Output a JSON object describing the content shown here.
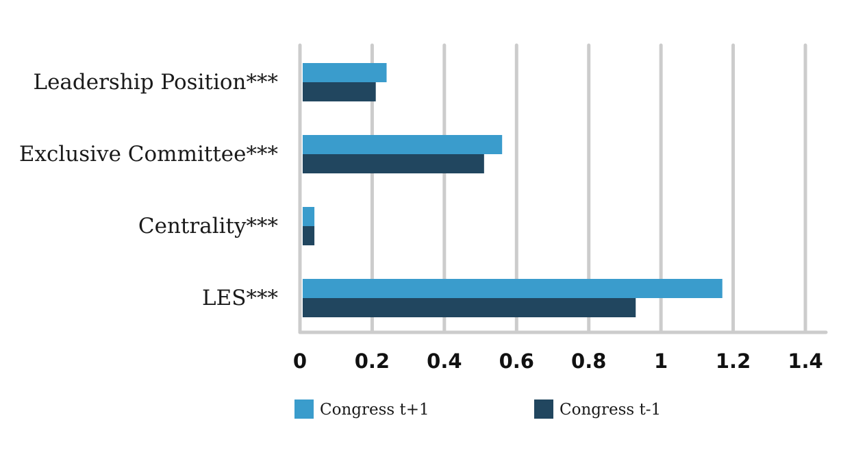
{
  "chart_data": {
    "type": "bar",
    "orientation": "horizontal",
    "categories": [
      "Leadership Position***",
      "Exclusive Committee***",
      "Centrality***",
      "LES***"
    ],
    "series": [
      {
        "name": "Congress t+1",
        "color": "#3a9ccc",
        "values": [
          0.24,
          0.56,
          0.04,
          1.17
        ]
      },
      {
        "name": "Congress t-1",
        "color": "#21465f",
        "values": [
          0.21,
          0.51,
          0.04,
          0.93
        ]
      }
    ],
    "xlim": [
      0,
      1.4
    ],
    "xticks": [
      "0",
      "0.2",
      "0.4",
      "0.6",
      "0.8",
      "1",
      "1.2",
      "1.4"
    ],
    "grid": true,
    "grid_color": "#cccccc",
    "legend_position": "bottom"
  }
}
